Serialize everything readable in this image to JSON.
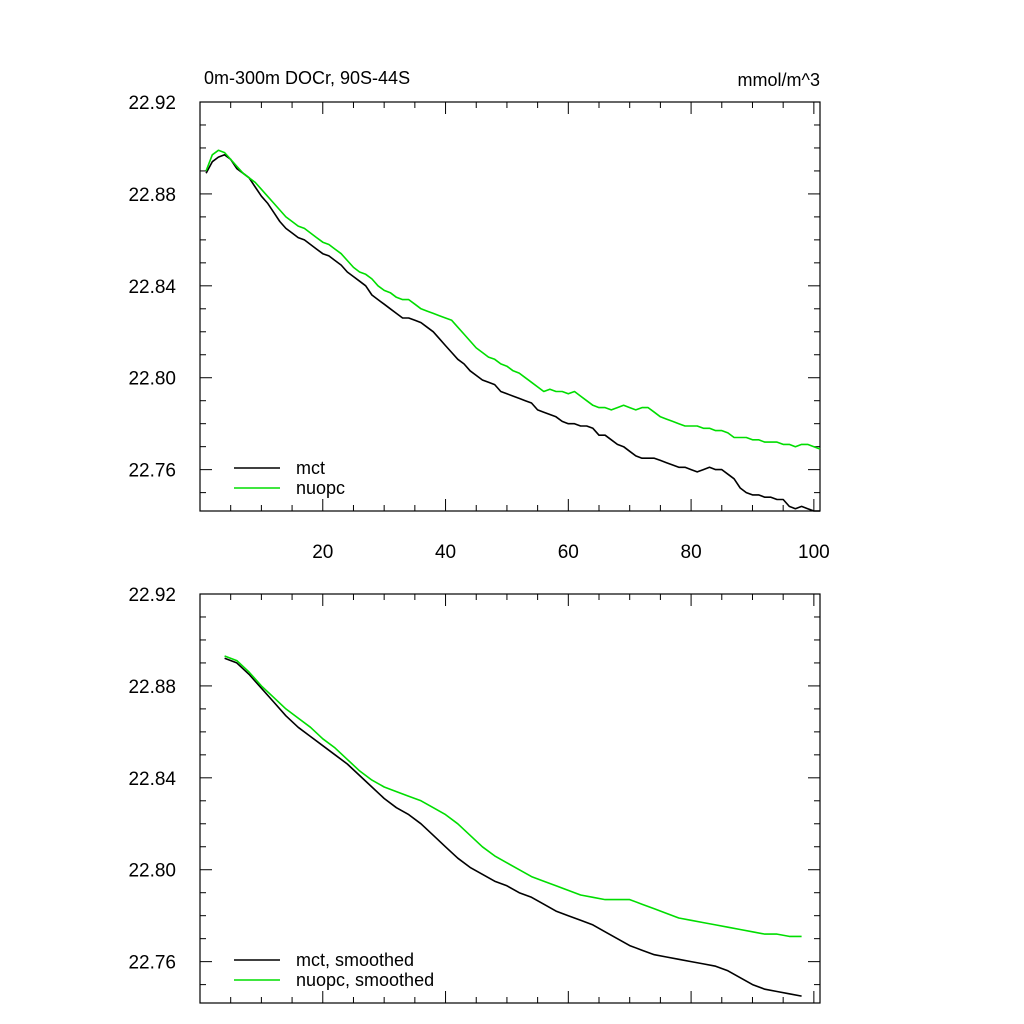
{
  "chart_data": [
    {
      "type": "line",
      "title_left": "0m-300m DOCr, 90S-44S",
      "title_right": "mmol/m^3",
      "xlim": [
        0,
        101
      ],
      "ylim": [
        22.742,
        22.92
      ],
      "yticks": [
        22.92,
        22.88,
        22.84,
        22.8,
        22.76
      ],
      "ytick_labels": [
        "22.92",
        "22.88",
        "22.84",
        "22.80",
        "22.76"
      ],
      "xticks": [
        20,
        40,
        60,
        80,
        100
      ],
      "xtick_labels": [
        "20",
        "40",
        "60",
        "80",
        "100"
      ],
      "legend_position": "bottom-left",
      "series": [
        {
          "name": "mct",
          "color": "#000000",
          "x": [
            1,
            2,
            3,
            4,
            5,
            6,
            7,
            8,
            9,
            10,
            11,
            12,
            13,
            14,
            15,
            16,
            17,
            18,
            19,
            20,
            21,
            22,
            23,
            24,
            25,
            26,
            27,
            28,
            29,
            30,
            31,
            32,
            33,
            34,
            35,
            36,
            37,
            38,
            39,
            40,
            41,
            42,
            43,
            44,
            45,
            46,
            47,
            48,
            49,
            50,
            51,
            52,
            53,
            54,
            55,
            56,
            57,
            58,
            59,
            60,
            61,
            62,
            63,
            64,
            65,
            66,
            67,
            68,
            69,
            70,
            71,
            72,
            73,
            74,
            75,
            76,
            77,
            78,
            79,
            80,
            81,
            82,
            83,
            84,
            85,
            86,
            87,
            88,
            89,
            90,
            91,
            92,
            93,
            94,
            95,
            96,
            97,
            98,
            99,
            100,
            101
          ],
          "values": [
            22.889,
            22.894,
            22.896,
            22.897,
            22.895,
            22.891,
            22.889,
            22.887,
            22.883,
            22.879,
            22.876,
            22.872,
            22.868,
            22.865,
            22.863,
            22.861,
            22.86,
            22.858,
            22.856,
            22.854,
            22.853,
            22.851,
            22.849,
            22.846,
            22.844,
            22.842,
            22.84,
            22.836,
            22.834,
            22.832,
            22.83,
            22.828,
            22.826,
            22.826,
            22.825,
            22.824,
            22.822,
            22.82,
            22.817,
            22.814,
            22.811,
            22.808,
            22.806,
            22.803,
            22.801,
            22.799,
            22.798,
            22.797,
            22.794,
            22.793,
            22.792,
            22.791,
            22.79,
            22.789,
            22.786,
            22.785,
            22.784,
            22.783,
            22.781,
            22.78,
            22.78,
            22.779,
            22.779,
            22.778,
            22.775,
            22.775,
            22.773,
            22.771,
            22.77,
            22.768,
            22.766,
            22.765,
            22.765,
            22.765,
            22.764,
            22.763,
            22.762,
            22.761,
            22.761,
            22.76,
            22.759,
            22.76,
            22.761,
            22.76,
            22.76,
            22.758,
            22.756,
            22.752,
            22.75,
            22.749,
            22.749,
            22.748,
            22.748,
            22.747,
            22.747,
            22.744,
            22.743,
            22.744,
            22.743,
            22.742,
            22.742
          ]
        },
        {
          "name": "nuopc",
          "color": "#00dd00",
          "x": [
            1,
            2,
            3,
            4,
            5,
            6,
            7,
            8,
            9,
            10,
            11,
            12,
            13,
            14,
            15,
            16,
            17,
            18,
            19,
            20,
            21,
            22,
            23,
            24,
            25,
            26,
            27,
            28,
            29,
            30,
            31,
            32,
            33,
            34,
            35,
            36,
            37,
            38,
            39,
            40,
            41,
            42,
            43,
            44,
            45,
            46,
            47,
            48,
            49,
            50,
            51,
            52,
            53,
            54,
            55,
            56,
            57,
            58,
            59,
            60,
            61,
            62,
            63,
            64,
            65,
            66,
            67,
            68,
            69,
            70,
            71,
            72,
            73,
            74,
            75,
            76,
            77,
            78,
            79,
            80,
            81,
            82,
            83,
            84,
            85,
            86,
            87,
            88,
            89,
            90,
            91,
            92,
            93,
            94,
            95,
            96,
            97,
            98,
            99,
            100,
            101
          ],
          "values": [
            22.89,
            22.897,
            22.899,
            22.898,
            22.895,
            22.892,
            22.889,
            22.887,
            22.885,
            22.882,
            22.879,
            22.876,
            22.873,
            22.87,
            22.868,
            22.866,
            22.865,
            22.863,
            22.861,
            22.859,
            22.858,
            22.856,
            22.854,
            22.851,
            22.848,
            22.846,
            22.845,
            22.843,
            22.84,
            22.838,
            22.837,
            22.835,
            22.834,
            22.834,
            22.832,
            22.83,
            22.829,
            22.828,
            22.827,
            22.826,
            22.825,
            22.822,
            22.819,
            22.816,
            22.813,
            22.811,
            22.809,
            22.808,
            22.806,
            22.805,
            22.803,
            22.802,
            22.8,
            22.798,
            22.796,
            22.794,
            22.795,
            22.794,
            22.794,
            22.793,
            22.794,
            22.792,
            22.79,
            22.788,
            22.787,
            22.787,
            22.786,
            22.787,
            22.788,
            22.787,
            22.786,
            22.787,
            22.787,
            22.785,
            22.783,
            22.782,
            22.781,
            22.78,
            22.779,
            22.779,
            22.779,
            22.778,
            22.778,
            22.777,
            22.777,
            22.776,
            22.774,
            22.774,
            22.774,
            22.773,
            22.773,
            22.772,
            22.772,
            22.772,
            22.771,
            22.771,
            22.77,
            22.771,
            22.771,
            22.77,
            22.769
          ]
        }
      ]
    },
    {
      "type": "line",
      "xlim": [
        0,
        101
      ],
      "ylim": [
        22.742,
        22.92
      ],
      "yticks": [
        22.92,
        22.88,
        22.84,
        22.8,
        22.76
      ],
      "ytick_labels": [
        "22.92",
        "22.88",
        "22.84",
        "22.80",
        "22.76"
      ],
      "xticks": [
        20,
        40,
        60,
        80,
        100
      ],
      "xtick_labels": [],
      "legend_position": "bottom-left",
      "series": [
        {
          "name": "mct, smoothed",
          "color": "#000000",
          "x": [
            4,
            6,
            8,
            10,
            12,
            14,
            16,
            18,
            20,
            22,
            24,
            26,
            28,
            30,
            32,
            34,
            36,
            38,
            40,
            42,
            44,
            46,
            48,
            50,
            52,
            54,
            56,
            58,
            60,
            62,
            64,
            66,
            68,
            70,
            72,
            74,
            76,
            78,
            80,
            82,
            84,
            86,
            88,
            90,
            92,
            94,
            96,
            98
          ],
          "values": [
            22.892,
            22.89,
            22.885,
            22.879,
            22.873,
            22.867,
            22.862,
            22.858,
            22.854,
            22.85,
            22.846,
            22.841,
            22.836,
            22.831,
            22.827,
            22.824,
            22.82,
            22.815,
            22.81,
            22.805,
            22.801,
            22.798,
            22.795,
            22.793,
            22.79,
            22.788,
            22.785,
            22.782,
            22.78,
            22.778,
            22.776,
            22.773,
            22.77,
            22.767,
            22.765,
            22.763,
            22.762,
            22.761,
            22.76,
            22.759,
            22.758,
            22.756,
            22.753,
            22.75,
            22.748,
            22.747,
            22.746,
            22.745
          ]
        },
        {
          "name": "nuopc, smoothed",
          "color": "#00dd00",
          "x": [
            4,
            6,
            8,
            10,
            12,
            14,
            16,
            18,
            20,
            22,
            24,
            26,
            28,
            30,
            32,
            34,
            36,
            38,
            40,
            42,
            44,
            46,
            48,
            50,
            52,
            54,
            56,
            58,
            60,
            62,
            64,
            66,
            68,
            70,
            72,
            74,
            76,
            78,
            80,
            82,
            84,
            86,
            88,
            90,
            92,
            94,
            96,
            98
          ],
          "values": [
            22.893,
            22.891,
            22.886,
            22.88,
            22.875,
            22.87,
            22.866,
            22.862,
            22.857,
            22.853,
            22.848,
            22.843,
            22.839,
            22.836,
            22.834,
            22.832,
            22.83,
            22.827,
            22.824,
            22.82,
            22.815,
            22.81,
            22.806,
            22.803,
            22.8,
            22.797,
            22.795,
            22.793,
            22.791,
            22.789,
            22.788,
            22.787,
            22.787,
            22.787,
            22.785,
            22.783,
            22.781,
            22.779,
            22.778,
            22.777,
            22.776,
            22.775,
            22.774,
            22.773,
            22.772,
            22.772,
            22.771,
            22.771
          ]
        }
      ]
    }
  ]
}
